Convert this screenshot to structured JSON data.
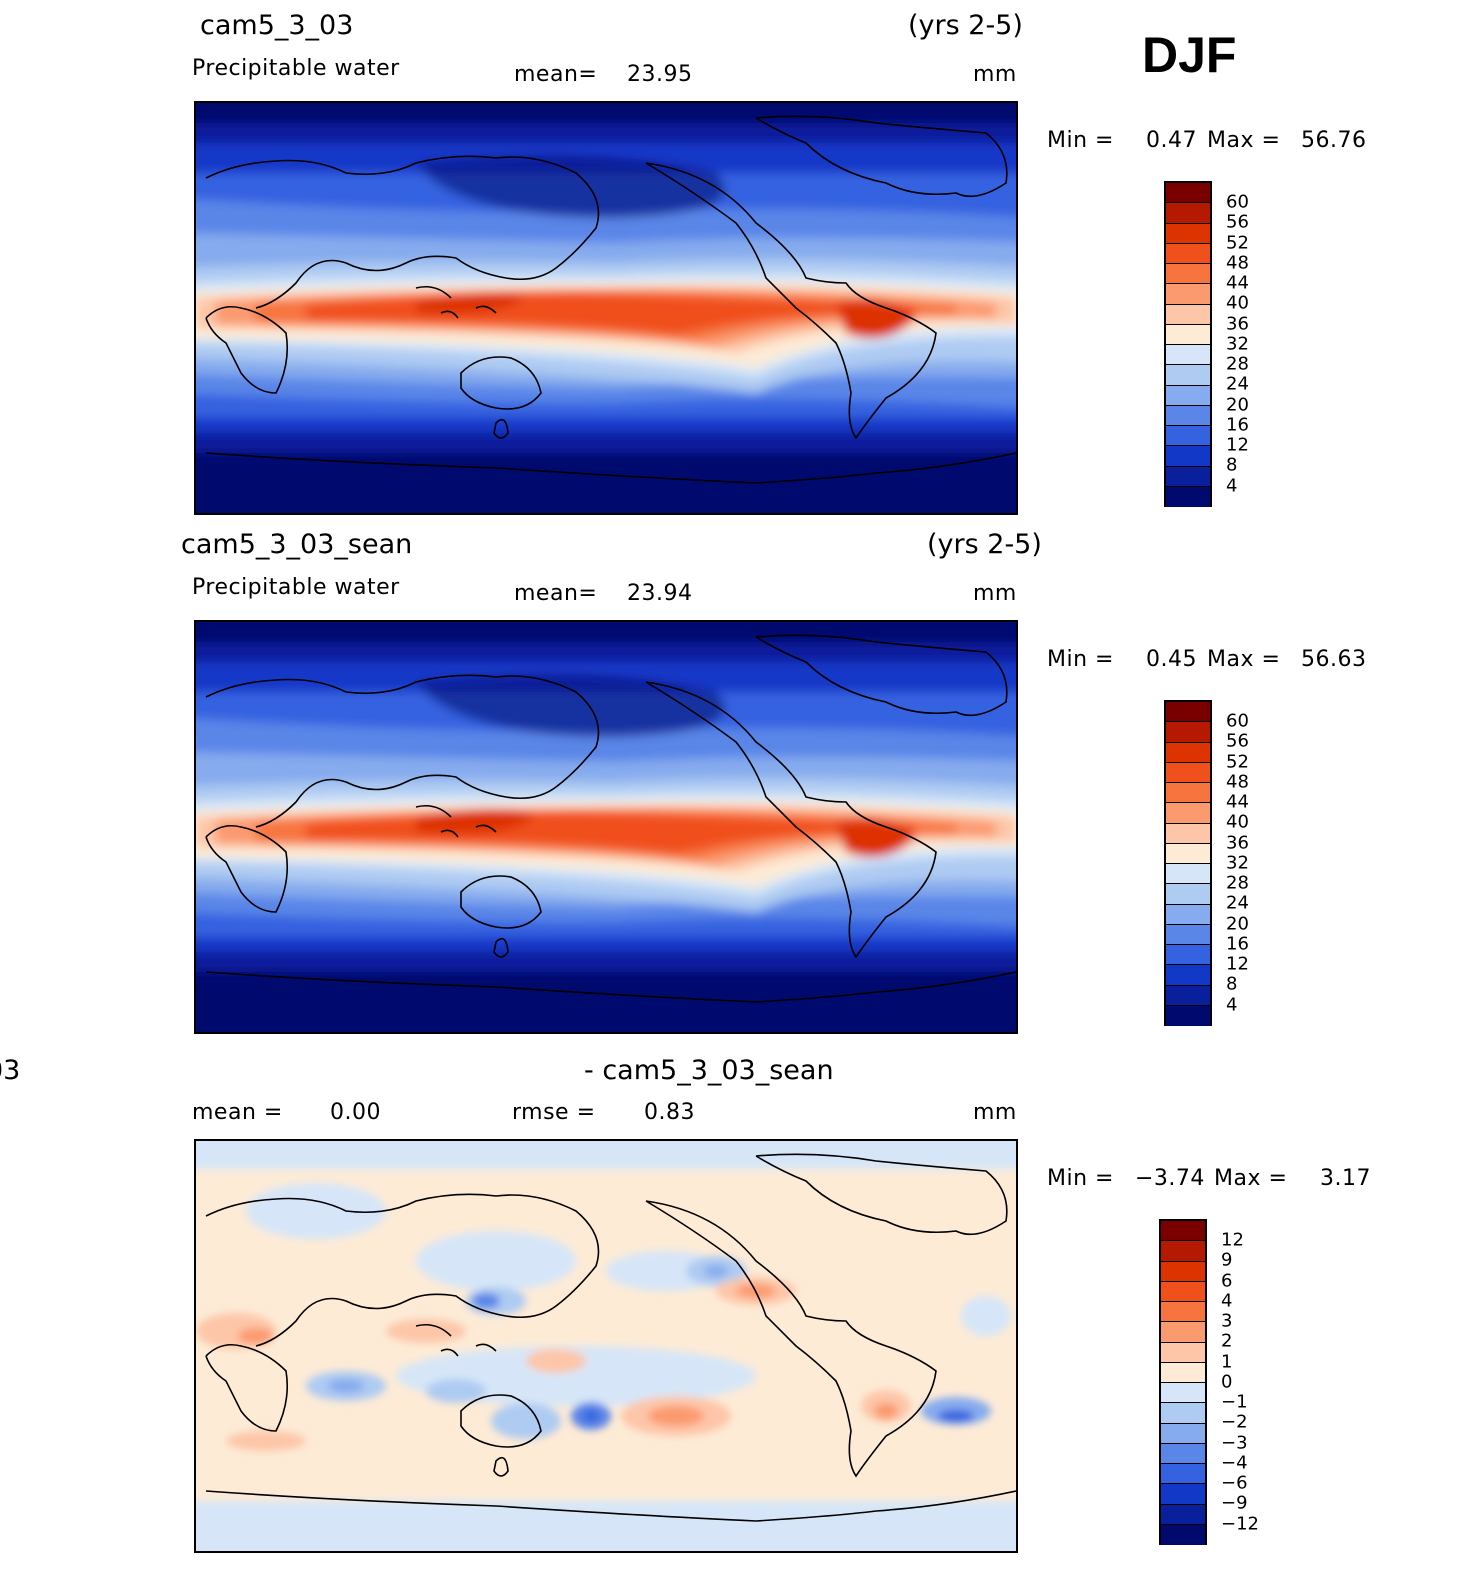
{
  "season": "DJF",
  "panels": [
    {
      "case": "cam5_3_03",
      "years": "(yrs 2-5)",
      "variable": "Precipitable water",
      "mean_label": "mean=",
      "mean_value": "23.95",
      "units": "mm",
      "min_label": "Min =",
      "min_value": "0.47",
      "max_label": "Max =",
      "max_value": "56.76",
      "colorbar_ticks": [
        "60",
        "56",
        "52",
        "48",
        "44",
        "40",
        "36",
        "32",
        "28",
        "24",
        "20",
        "16",
        "12",
        "8",
        "4"
      ]
    },
    {
      "case": "cam5_3_03_sean",
      "years": "(yrs 2-5)",
      "variable": "Precipitable water",
      "mean_label": "mean=",
      "mean_value": "23.94",
      "units": "mm",
      "min_label": "Min =",
      "min_value": "0.45",
      "max_label": "Max =",
      "max_value": "56.63",
      "colorbar_ticks": [
        "60",
        "56",
        "52",
        "48",
        "44",
        "40",
        "36",
        "32",
        "28",
        "24",
        "20",
        "16",
        "12",
        "8",
        "4"
      ]
    },
    {
      "title_left": "03",
      "title_right": "- cam5_3_03_sean",
      "mean_label": "mean =",
      "mean_value": "0.00",
      "rmse_label": "rmse =",
      "rmse_value": "0.83",
      "units": "mm",
      "min_label": "Min =",
      "min_value": "−3.74",
      "max_label": "Max =",
      "max_value": "3.17",
      "colorbar_ticks": [
        "12",
        "9",
        "6",
        "4",
        "3",
        "2",
        "1",
        "0",
        "−1",
        "−2",
        "−3",
        "−4",
        "−6",
        "−9",
        "−12"
      ]
    }
  ],
  "colors": {
    "field_scale": [
      "#7a0000",
      "#b51a00",
      "#dd3300",
      "#f0501c",
      "#f7743f",
      "#fb9a6f",
      "#fdc6a8",
      "#fdebd6",
      "#d6e6f8",
      "#aecbf2",
      "#86abee",
      "#5a86e8",
      "#3462e0",
      "#1238c8",
      "#0a1f9c",
      "#000a6e"
    ],
    "diff_scale": [
      "#7a0000",
      "#b51a00",
      "#dd3300",
      "#f0501c",
      "#f7743f",
      "#fb9a6f",
      "#fdc6a8",
      "#fdebd6",
      "#d6e6f8",
      "#aecbf2",
      "#86abee",
      "#5a86e8",
      "#3462e0",
      "#1238c8",
      "#0a1f9c",
      "#000a6e"
    ]
  }
}
